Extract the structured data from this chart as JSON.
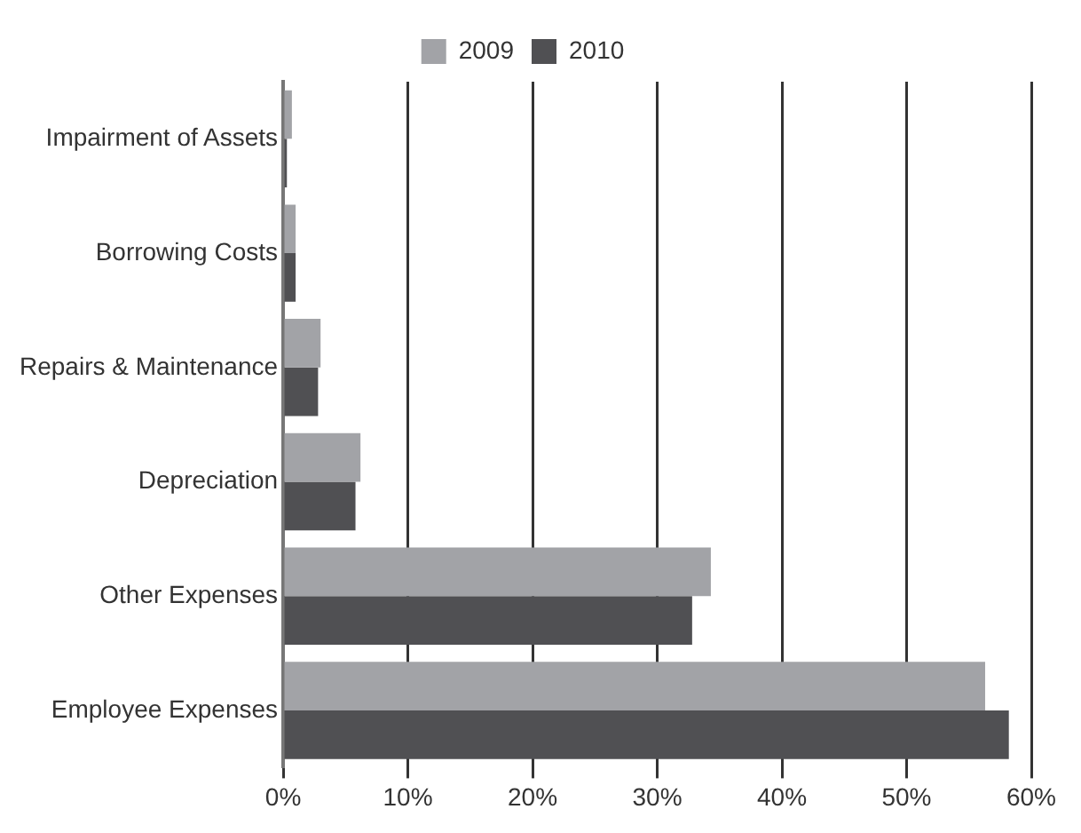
{
  "chart_data": {
    "type": "bar",
    "orientation": "horizontal",
    "categories": [
      "Impairment of Assets",
      "Borrowing Costs",
      "Repairs & Maintenance",
      "Depreciation",
      "Other Expenses",
      "Employee Expenses"
    ],
    "series": [
      {
        "name": "2009",
        "color": "#a2a3a7",
        "values": [
          0.7,
          1.0,
          3.0,
          6.2,
          34.3,
          56.3
        ]
      },
      {
        "name": "2010",
        "color": "#505053",
        "values": [
          0.3,
          1.0,
          2.8,
          5.8,
          32.8,
          58.2
        ]
      }
    ],
    "xlim": [
      0,
      60
    ],
    "xticks": [
      {
        "value": 0,
        "label": "0%"
      },
      {
        "value": 10,
        "label": "10%"
      },
      {
        "value": 20,
        "label": "20%"
      },
      {
        "value": 30,
        "label": "30%"
      },
      {
        "value": 40,
        "label": "40%"
      },
      {
        "value": 50,
        "label": "50%"
      },
      {
        "value": 60,
        "label": "60%"
      }
    ],
    "grid": "x",
    "legend": "top"
  }
}
